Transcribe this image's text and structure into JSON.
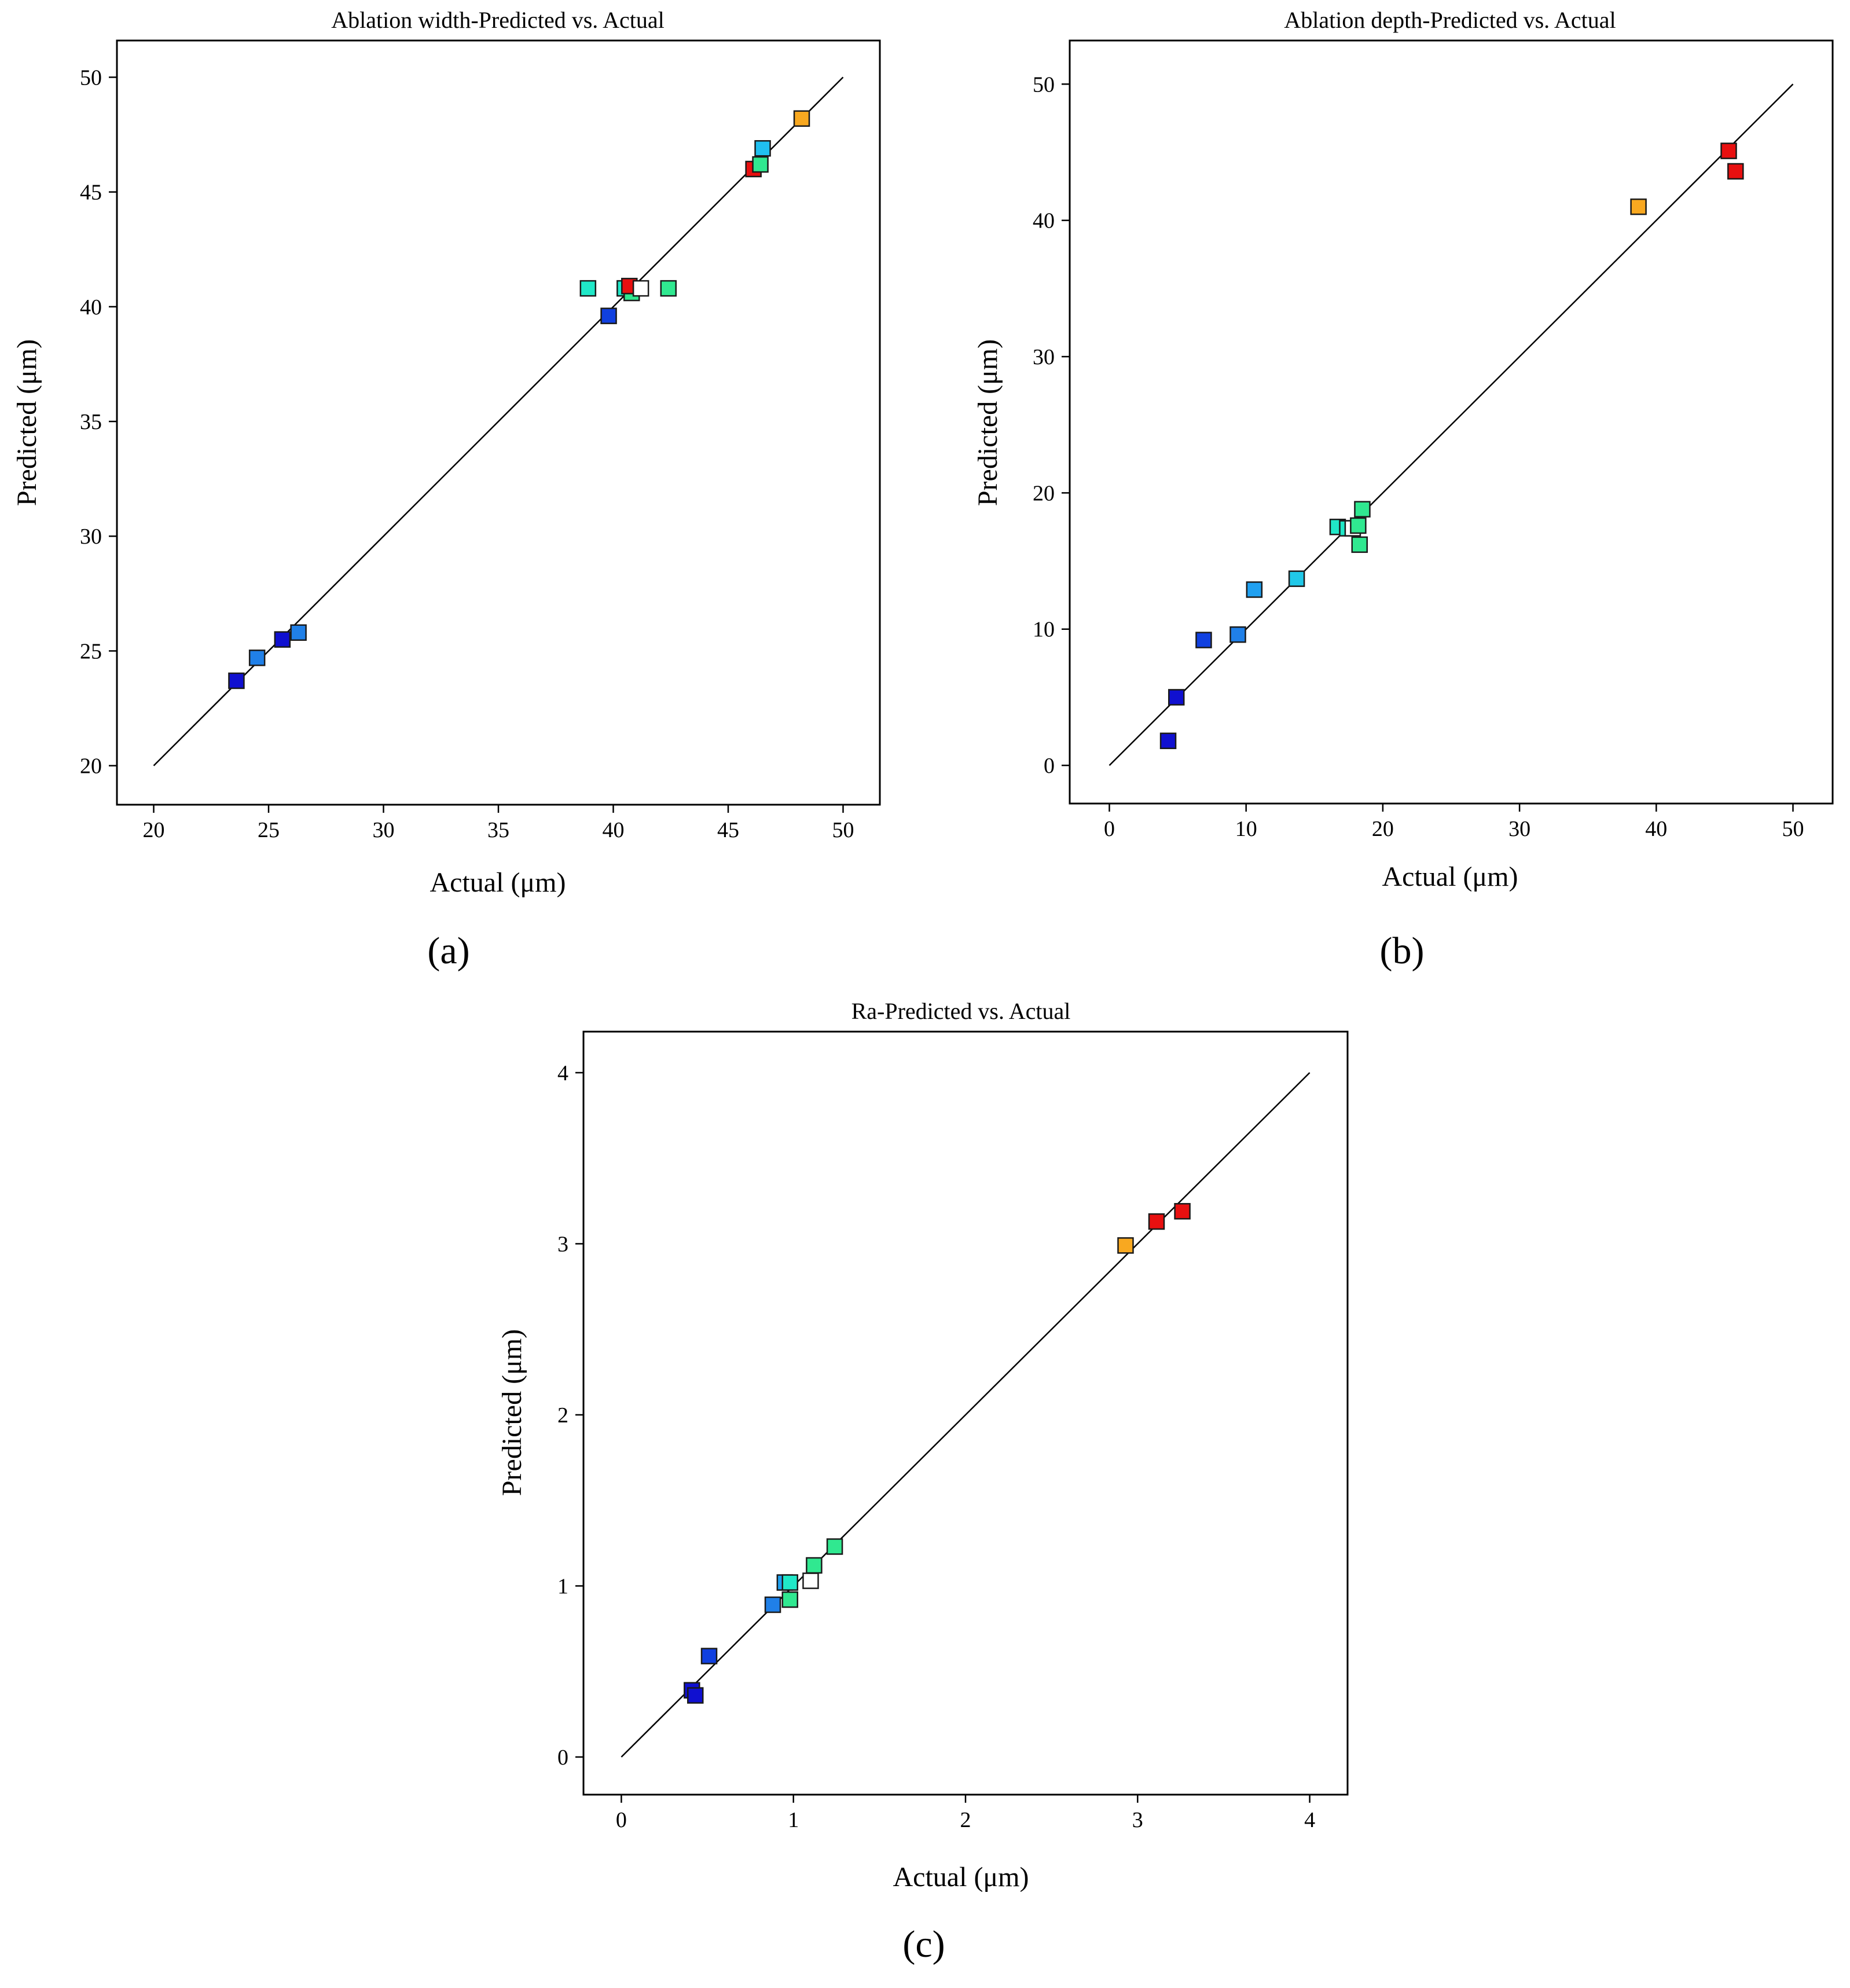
{
  "chart_data": [
    {
      "type": "scatter",
      "title": "Ablation width-Predicted vs. Actual",
      "xlabel": "Actual (μm)",
      "ylabel": "Predicted (μm)",
      "caption": "(a)",
      "xlim": [
        18.4,
        51.6
      ],
      "ylim": [
        18.3,
        51.6
      ],
      "xticks": [
        20,
        25,
        30,
        35,
        40,
        45,
        50
      ],
      "yticks": [
        20,
        25,
        30,
        35,
        40,
        45,
        50
      ],
      "diagonal": [
        20,
        50
      ],
      "points": [
        {
          "x": 23.6,
          "y": 23.7,
          "color": "#1010d0"
        },
        {
          "x": 24.5,
          "y": 24.7,
          "color": "#2080e8"
        },
        {
          "x": 25.6,
          "y": 25.5,
          "color": "#1010d0"
        },
        {
          "x": 26.3,
          "y": 25.8,
          "color": "#2080e8"
        },
        {
          "x": 39.8,
          "y": 39.6,
          "color": "#1040e0"
        },
        {
          "x": 38.9,
          "y": 40.8,
          "color": "#20e8c8"
        },
        {
          "x": 40.5,
          "y": 40.8,
          "color": "#20e8c8"
        },
        {
          "x": 40.8,
          "y": 40.6,
          "color": "#30e890"
        },
        {
          "x": 40.7,
          "y": 40.9,
          "color": "#e81010"
        },
        {
          "x": 41.2,
          "y": 40.8,
          "color": "#ffffff"
        },
        {
          "x": 42.4,
          "y": 40.8,
          "color": "#30e890"
        },
        {
          "x": 46.1,
          "y": 46.0,
          "color": "#e81010"
        },
        {
          "x": 46.4,
          "y": 46.2,
          "color": "#30e890"
        },
        {
          "x": 46.5,
          "y": 46.9,
          "color": "#20c0f0"
        },
        {
          "x": 48.2,
          "y": 48.2,
          "color": "#f8a820"
        }
      ]
    },
    {
      "type": "scatter",
      "title": "Ablation depth-Predicted vs. Actual",
      "xlabel": "Actual (μm)",
      "ylabel": "Predicted (μm)",
      "caption": "(b)",
      "xlim": [
        -2.9,
        52.9
      ],
      "ylim": [
        -2.8,
        53.2
      ],
      "xticks": [
        0,
        10,
        20,
        30,
        40,
        50
      ],
      "yticks": [
        0,
        10,
        20,
        30,
        40,
        50
      ],
      "diagonal": [
        0,
        50
      ],
      "points": [
        {
          "x": 4.3,
          "y": 1.8,
          "color": "#1010d0"
        },
        {
          "x": 4.9,
          "y": 5.0,
          "color": "#1010d0"
        },
        {
          "x": 6.9,
          "y": 9.2,
          "color": "#1040e0"
        },
        {
          "x": 9.4,
          "y": 9.6,
          "color": "#2080e8"
        },
        {
          "x": 10.6,
          "y": 12.9,
          "color": "#20a0f0"
        },
        {
          "x": 13.7,
          "y": 13.7,
          "color": "#20c8e8"
        },
        {
          "x": 16.7,
          "y": 17.5,
          "color": "#20e8c8"
        },
        {
          "x": 17.4,
          "y": 17.4,
          "color": "#20e8c8"
        },
        {
          "x": 17.8,
          "y": 17.4,
          "color": "#ffffff"
        },
        {
          "x": 18.2,
          "y": 17.6,
          "color": "#30e890"
        },
        {
          "x": 18.3,
          "y": 16.2,
          "color": "#30e890"
        },
        {
          "x": 18.5,
          "y": 18.8,
          "color": "#30e890"
        },
        {
          "x": 38.7,
          "y": 41.0,
          "color": "#f8a820"
        },
        {
          "x": 45.3,
          "y": 45.1,
          "color": "#e81010"
        },
        {
          "x": 45.8,
          "y": 43.6,
          "color": "#e81010"
        }
      ]
    },
    {
      "type": "scatter",
      "title": "Ra-Predicted vs. Actual",
      "xlabel": "Actual (μm)",
      "ylabel": "Predicted (μm)",
      "caption": "(c)",
      "xlim": [
        -0.22,
        4.22
      ],
      "ylim": [
        -0.22,
        4.24
      ],
      "xticks": [
        0,
        1,
        2,
        3,
        4
      ],
      "yticks": [
        0,
        1,
        2,
        3,
        4
      ],
      "diagonal": [
        0,
        4
      ],
      "points": [
        {
          "x": 0.41,
          "y": 0.39,
          "color": "#1010d0"
        },
        {
          "x": 0.43,
          "y": 0.36,
          "color": "#1010d0"
        },
        {
          "x": 0.51,
          "y": 0.59,
          "color": "#1040e0"
        },
        {
          "x": 0.88,
          "y": 0.89,
          "color": "#2080e8"
        },
        {
          "x": 0.95,
          "y": 1.02,
          "color": "#20a0f0"
        },
        {
          "x": 0.98,
          "y": 1.02,
          "color": "#20e8c8"
        },
        {
          "x": 0.98,
          "y": 0.92,
          "color": "#30e890"
        },
        {
          "x": 1.1,
          "y": 1.03,
          "color": "#ffffff"
        },
        {
          "x": 1.12,
          "y": 1.12,
          "color": "#30e890"
        },
        {
          "x": 1.24,
          "y": 1.23,
          "color": "#30e890"
        },
        {
          "x": 2.93,
          "y": 2.99,
          "color": "#f8a820"
        },
        {
          "x": 3.11,
          "y": 3.13,
          "color": "#e81010"
        },
        {
          "x": 3.26,
          "y": 3.19,
          "color": "#e81010"
        }
      ]
    }
  ]
}
